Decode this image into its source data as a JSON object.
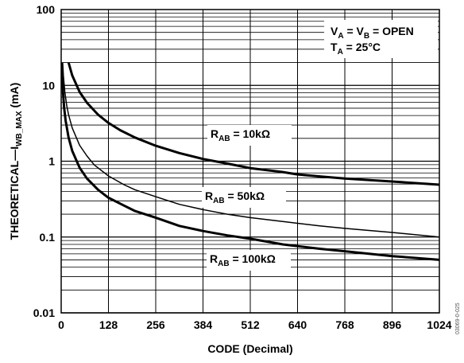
{
  "chart_data": {
    "type": "line",
    "title": "",
    "xlabel": "CODE (Decimal)",
    "ylabel": "THEORETICAL—I",
    "ylabel_sub": "WB_MAX",
    "ylabel_unit": " (mA)",
    "x_scale": "linear",
    "y_scale": "log",
    "xlim": [
      0,
      1024
    ],
    "ylim": [
      0.01,
      100
    ],
    "grid": true,
    "x_ticks": [
      "0",
      "128",
      "256",
      "384",
      "512",
      "640",
      "768",
      "896",
      "1024"
    ],
    "y_ticks": [
      "0.01",
      "0.1",
      "1",
      "10",
      "100"
    ],
    "annotations": {
      "condition1": {
        "v": "V",
        "a_sub": "A",
        "eq": " = V",
        "b_sub": "B",
        "rest": " = OPEN"
      },
      "condition2": {
        "t": "T",
        "a_sub": "A",
        "rest": " = 25°C"
      }
    },
    "series": [
      {
        "name_main": "R",
        "name_sub": "AB",
        "name_rest": " = 10kΩ",
        "weight": "heavy",
        "x": [
          20,
          30,
          50,
          70,
          100,
          128,
          160,
          200,
          256,
          320,
          384,
          450,
          512,
          600,
          640,
          700,
          768,
          896,
          1024
        ],
        "y": [
          20,
          13.5,
          8.2,
          5.9,
          4.1,
          3.2,
          2.56,
          2.05,
          1.6,
          1.28,
          1.07,
          0.93,
          0.81,
          0.72,
          0.67,
          0.63,
          0.59,
          0.54,
          0.49
        ]
      },
      {
        "name_main": "R",
        "name_sub": "AB",
        "name_rest": " = 50kΩ",
        "weight": "light",
        "x": [
          4,
          6,
          10,
          15,
          20,
          30,
          50,
          70,
          90,
          128,
          170,
          200,
          256,
          320,
          384,
          450,
          512,
          600,
          700,
          768,
          896,
          1024
        ],
        "y": [
          20,
          13.4,
          8.2,
          5.4,
          4.1,
          2.75,
          1.62,
          1.17,
          0.89,
          0.64,
          0.49,
          0.42,
          0.34,
          0.27,
          0.23,
          0.2,
          0.18,
          0.16,
          0.14,
          0.13,
          0.115,
          0.1
        ],
        "label_pos": "mid"
      },
      {
        "name_main": "R",
        "name_sub": "AB",
        "name_rest": " = 100kΩ",
        "weight": "heavy",
        "x": [
          2,
          3,
          5,
          8,
          12,
          20,
          30,
          50,
          70,
          100,
          128,
          170,
          200,
          256,
          320,
          384,
          450,
          512,
          600,
          700,
          768,
          896,
          1024
        ],
        "y": [
          20,
          13.7,
          8.2,
          5.1,
          3.42,
          2.06,
          1.37,
          0.82,
          0.59,
          0.42,
          0.33,
          0.26,
          0.22,
          0.18,
          0.14,
          0.12,
          0.105,
          0.095,
          0.08,
          0.07,
          0.065,
          0.056,
          0.05
        ]
      }
    ]
  },
  "figure_id": "03069-0-025"
}
